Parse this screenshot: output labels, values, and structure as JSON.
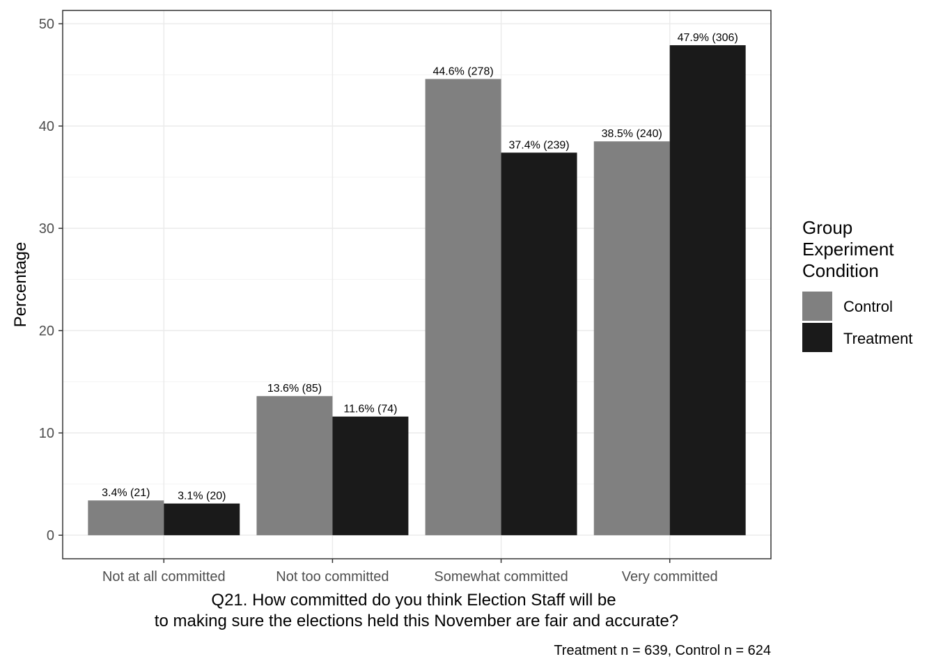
{
  "chart_data": {
    "type": "bar",
    "categories": [
      "Not at all committed",
      "Not too committed",
      "Somewhat committed",
      "Very committed"
    ],
    "series": [
      {
        "name": "Control",
        "color": "#808080",
        "values": [
          3.4,
          13.6,
          44.6,
          38.5
        ],
        "labels": [
          "3.4% (21)",
          "13.6% (85)",
          "44.6% (278)",
          "38.5% (240)"
        ]
      },
      {
        "name": "Treatment",
        "color": "#1a1a1a",
        "values": [
          3.1,
          11.6,
          37.4,
          47.9
        ],
        "labels": [
          "3.1% (20)",
          "11.6% (74)",
          "37.4% (239)",
          "47.9% (306)"
        ]
      }
    ],
    "ylabel": "Percentage",
    "xlabel": [
      "Q21. How committed do you think Election Staff will be",
      "to making sure the elections held this November are fair and accurate?"
    ],
    "caption": "Treatment n = 639, Control n = 624",
    "legend_title": [
      "Group",
      "Experiment",
      "Condition"
    ],
    "legend_position": "right",
    "ylim": [
      -2.3,
      51.3
    ],
    "yticks": [
      0,
      10,
      20,
      30,
      40,
      50
    ],
    "grid": true
  }
}
